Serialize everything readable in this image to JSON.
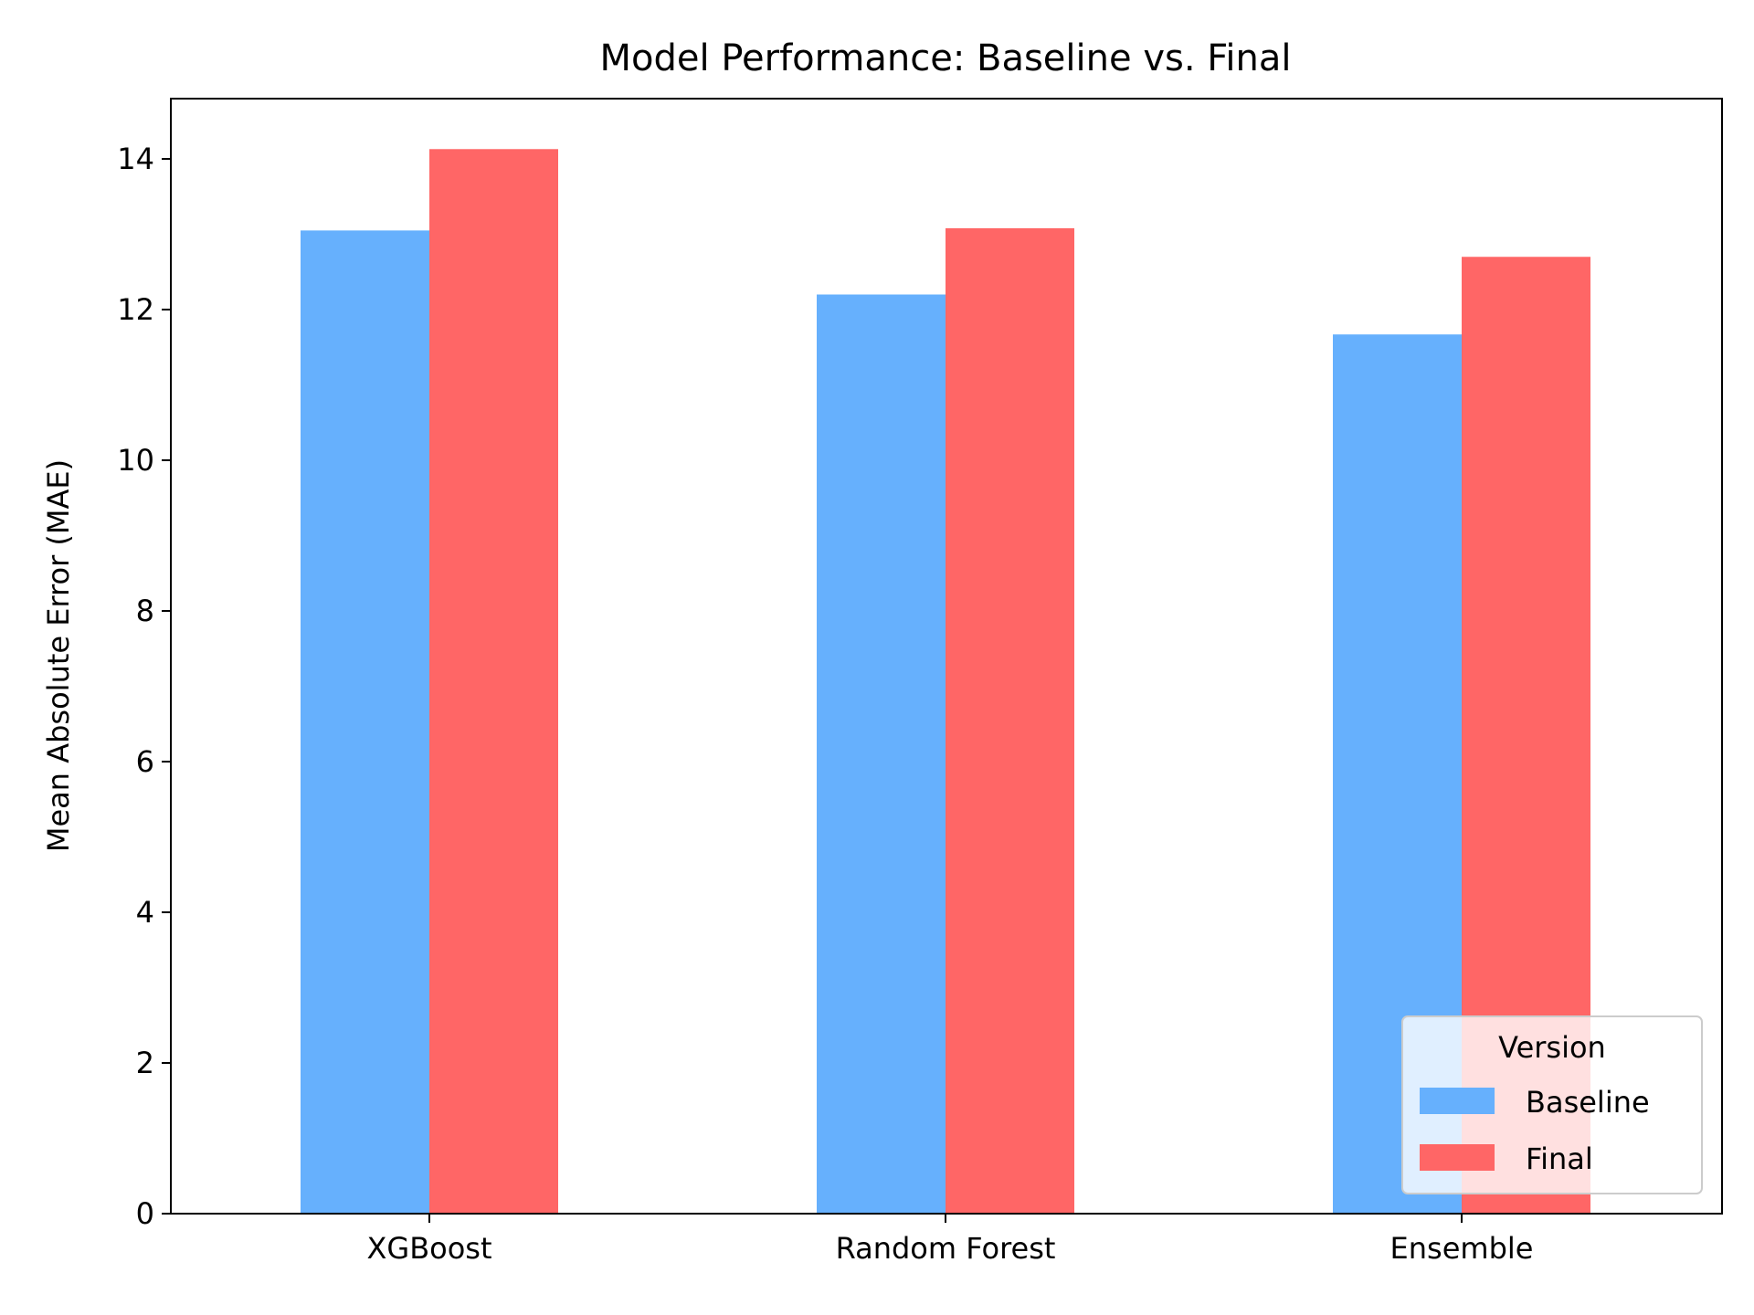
{
  "chart_data": {
    "type": "bar",
    "title": "Model Performance: Baseline vs. Final",
    "xlabel": "",
    "ylabel": "Mean Absolute Error (MAE)",
    "categories": [
      "XGBoost",
      "Random Forest",
      "Ensemble"
    ],
    "series": [
      {
        "name": "Baseline",
        "color": "#66b0fd",
        "values": [
          13.05,
          12.2,
          11.67
        ]
      },
      {
        "name": "Final",
        "color": "#ff6666",
        "values": [
          14.13,
          13.08,
          12.7
        ]
      }
    ],
    "ylim": [
      0,
      14.8
    ],
    "yticks": [
      0,
      2,
      4,
      6,
      8,
      10,
      12,
      14
    ],
    "grid": false,
    "legend": {
      "title": "Version",
      "position": "lower-right"
    }
  }
}
